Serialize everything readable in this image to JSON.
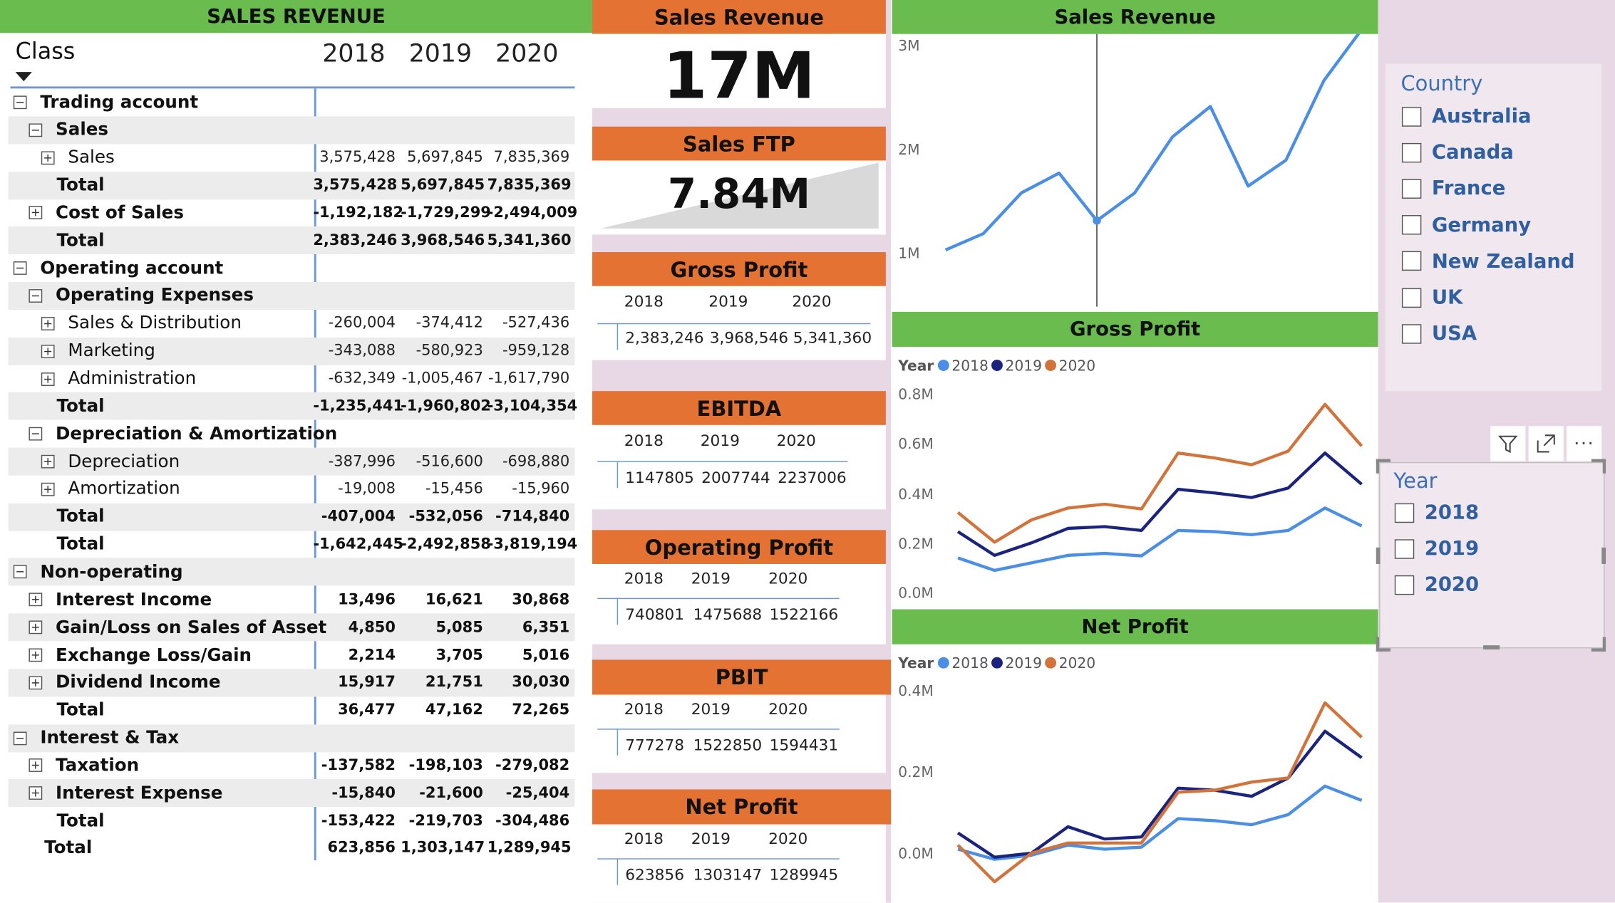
{
  "matrix": {
    "title": "SALES REVENUE",
    "col_header": "Class",
    "years": [
      "2018",
      "2019",
      "2020"
    ],
    "rows": [
      {
        "label": "Trading account",
        "indent": 0,
        "toggle": "minus",
        "bold": true,
        "shade": false,
        "values": [
          "",
          "",
          ""
        ]
      },
      {
        "label": "Sales",
        "indent": 1,
        "toggle": "minus",
        "bold": true,
        "shade": true,
        "values": [
          "",
          "",
          ""
        ]
      },
      {
        "label": "Sales",
        "indent": 2,
        "toggle": "plus",
        "bold": false,
        "shade": false,
        "values": [
          "3,575,428",
          "5,697,845",
          "7,835,369"
        ]
      },
      {
        "label": "Total",
        "indent": 3,
        "toggle": "",
        "bold": true,
        "shade": true,
        "values": [
          "3,575,428",
          "5,697,845",
          "7,835,369"
        ]
      },
      {
        "label": "Cost of Sales",
        "indent": 1,
        "toggle": "plus",
        "bold": true,
        "shade": false,
        "values": [
          "-1,192,182",
          "-1,729,299",
          "-2,494,009"
        ]
      },
      {
        "label": "Total",
        "indent": 3,
        "toggle": "",
        "bold": true,
        "shade": true,
        "values": [
          "2,383,246",
          "3,968,546",
          "5,341,360"
        ]
      },
      {
        "label": "Operating account",
        "indent": 0,
        "toggle": "minus",
        "bold": true,
        "shade": false,
        "values": [
          "",
          "",
          ""
        ]
      },
      {
        "label": "Operating Expenses",
        "indent": 1,
        "toggle": "minus",
        "bold": true,
        "shade": true,
        "values": [
          "",
          "",
          ""
        ]
      },
      {
        "label": "Sales & Distribution",
        "indent": 2,
        "toggle": "plus",
        "bold": false,
        "shade": false,
        "values": [
          "-260,004",
          "-374,412",
          "-527,436"
        ]
      },
      {
        "label": "Marketing",
        "indent": 2,
        "toggle": "plus",
        "bold": false,
        "shade": true,
        "values": [
          "-343,088",
          "-580,923",
          "-959,128"
        ]
      },
      {
        "label": "Administration",
        "indent": 2,
        "toggle": "plus",
        "bold": false,
        "shade": false,
        "values": [
          "-632,349",
          "-1,005,467",
          "-1,617,790"
        ]
      },
      {
        "label": "Total",
        "indent": 3,
        "toggle": "",
        "bold": true,
        "shade": true,
        "values": [
          "-1,235,441",
          "-1,960,802",
          "-3,104,354"
        ]
      },
      {
        "label": "Depreciation & Amortization",
        "indent": 1,
        "toggle": "minus",
        "bold": true,
        "shade": false,
        "values": [
          "",
          "",
          ""
        ]
      },
      {
        "label": "Depreciation",
        "indent": 2,
        "toggle": "plus",
        "bold": false,
        "shade": true,
        "values": [
          "-387,996",
          "-516,600",
          "-698,880"
        ]
      },
      {
        "label": "Amortization",
        "indent": 2,
        "toggle": "plus",
        "bold": false,
        "shade": false,
        "values": [
          "-19,008",
          "-15,456",
          "-15,960"
        ]
      },
      {
        "label": "Total",
        "indent": 3,
        "toggle": "",
        "bold": true,
        "shade": true,
        "values": [
          "-407,004",
          "-532,056",
          "-714,840"
        ]
      },
      {
        "label": "Total",
        "indent": 4,
        "toggle": "",
        "bold": true,
        "shade": false,
        "values": [
          "-1,642,445",
          "-2,492,858",
          "-3,819,194"
        ]
      },
      {
        "label": "Non-operating",
        "indent": 0,
        "toggle": "minus",
        "bold": true,
        "shade": true,
        "values": [
          "",
          "",
          ""
        ]
      },
      {
        "label": "Interest Income",
        "indent": 1,
        "toggle": "plus",
        "bold": true,
        "shade": false,
        "values": [
          "13,496",
          "16,621",
          "30,868"
        ]
      },
      {
        "label": "Gain/Loss on Sales of Asset",
        "indent": 1,
        "toggle": "plus",
        "bold": true,
        "shade": true,
        "values": [
          "4,850",
          "5,085",
          "6,351"
        ]
      },
      {
        "label": "Exchange Loss/Gain",
        "indent": 1,
        "toggle": "plus",
        "bold": true,
        "shade": false,
        "values": [
          "2,214",
          "3,705",
          "5,016"
        ]
      },
      {
        "label": "Dividend Income",
        "indent": 1,
        "toggle": "plus",
        "bold": true,
        "shade": true,
        "values": [
          "15,917",
          "21,751",
          "30,030"
        ]
      },
      {
        "label": "Total",
        "indent": 4,
        "toggle": "",
        "bold": true,
        "shade": false,
        "values": [
          "36,477",
          "47,162",
          "72,265"
        ]
      },
      {
        "label": "Interest & Tax",
        "indent": 0,
        "toggle": "minus",
        "bold": true,
        "shade": true,
        "values": [
          "",
          "",
          ""
        ]
      },
      {
        "label": "Taxation",
        "indent": 1,
        "toggle": "plus",
        "bold": true,
        "shade": false,
        "values": [
          "-137,582",
          "-198,103",
          "-279,082"
        ]
      },
      {
        "label": "Interest Expense",
        "indent": 1,
        "toggle": "plus",
        "bold": true,
        "shade": true,
        "values": [
          "-15,840",
          "-21,600",
          "-25,404"
        ]
      },
      {
        "label": "Total",
        "indent": 4,
        "toggle": "",
        "bold": true,
        "shade": false,
        "values": [
          "-153,422",
          "-219,703",
          "-304,486"
        ]
      },
      {
        "label": "Total",
        "indent": 5,
        "toggle": "",
        "bold": true,
        "shade": false,
        "values": [
          "623,856",
          "1,303,147",
          "1,289,945"
        ]
      }
    ]
  },
  "cards": {
    "sales_revenue": {
      "title": "Sales Revenue",
      "value": "17M"
    },
    "sales_ftp": {
      "title": "Sales FTP",
      "value": "7.84M"
    },
    "gross_profit": {
      "title": "Gross Profit",
      "years": [
        "2018",
        "2019",
        "2020"
      ],
      "values": [
        "2,383,246",
        "3,968,546",
        "5,341,360"
      ]
    },
    "ebitda": {
      "title": "EBITDA",
      "years": [
        "2018",
        "2019",
        "2020"
      ],
      "values": [
        "1147805",
        "2007744",
        "2237006"
      ]
    },
    "operating_profit": {
      "title": "Operating Profit",
      "years": [
        "2018",
        "2019",
        "2020"
      ],
      "values": [
        "740801",
        "1475688",
        "1522166"
      ]
    },
    "pbit": {
      "title": "PBIT",
      "years": [
        "2018",
        "2019",
        "2020"
      ],
      "values": [
        "777278",
        "1522850",
        "1594431"
      ]
    },
    "net_profit": {
      "title": "Net Profit",
      "years": [
        "2018",
        "2019",
        "2020"
      ],
      "values": [
        "623856",
        "1303147",
        "1289945"
      ]
    }
  },
  "chart_data": [
    {
      "type": "line",
      "title": "Sales Revenue",
      "yticks": [
        "3M",
        "2M",
        "1M"
      ],
      "ylim": [
        0,
        3000000
      ],
      "x": [
        1,
        2,
        3,
        4,
        5,
        6,
        7,
        8,
        9,
        10,
        11,
        12
      ],
      "series": [
        {
          "name": "",
          "color": "#4a8ee6",
          "values": [
            620000,
            810000,
            1280000,
            1510000,
            960000,
            1280000,
            1930000,
            2280000,
            1360000,
            1660000,
            2580000,
            3170000
          ]
        }
      ],
      "highlight_index": 4,
      "grid": false
    },
    {
      "type": "line",
      "title": "Gross Profit",
      "legend_title": "Year",
      "legend_position": "top-left",
      "yticks": [
        "0.8M",
        "0.6M",
        "0.4M",
        "0.2M",
        "0.0M"
      ],
      "ylim": [
        0,
        0.8
      ],
      "x": [
        1,
        2,
        3,
        4,
        5,
        6,
        7,
        8,
        9,
        10,
        11,
        12
      ],
      "series": [
        {
          "name": "2018",
          "color": "#4a8ee6",
          "values": [
            0.14,
            0.09,
            0.12,
            0.15,
            0.158,
            0.148,
            0.25,
            0.245,
            0.233,
            0.25,
            0.34,
            0.268
          ]
        },
        {
          "name": "2019",
          "color": "#1a237e",
          "values": [
            0.245,
            0.15,
            0.2,
            0.258,
            0.265,
            0.25,
            0.415,
            0.4,
            0.382,
            0.42,
            0.56,
            0.435
          ]
        },
        {
          "name": "2020",
          "color": "#d2733b",
          "values": [
            0.322,
            0.203,
            0.292,
            0.34,
            0.355,
            0.336,
            0.56,
            0.54,
            0.513,
            0.568,
            0.755,
            0.588
          ]
        }
      ]
    },
    {
      "type": "line",
      "title": "Net Profit",
      "legend_title": "Year",
      "legend_position": "top-left",
      "yticks": [
        "0.4M",
        "0.2M",
        "0.0M"
      ],
      "ylim": [
        0,
        0.4
      ],
      "x": [
        1,
        2,
        3,
        4,
        5,
        6,
        7,
        8,
        9,
        10,
        11,
        12
      ],
      "series": [
        {
          "name": "2018",
          "color": "#4a8ee6",
          "values": [
            0.01,
            -0.015,
            -0.005,
            0.02,
            0.01,
            0.015,
            0.085,
            0.08,
            0.07,
            0.095,
            0.165,
            0.13
          ]
        },
        {
          "name": "2019",
          "color": "#1a237e",
          "values": [
            0.05,
            -0.01,
            0.0,
            0.065,
            0.035,
            0.04,
            0.16,
            0.155,
            0.14,
            0.185,
            0.3,
            0.235
          ]
        },
        {
          "name": "2020",
          "color": "#d2733b",
          "values": [
            0.02,
            -0.07,
            0.0,
            0.025,
            0.025,
            0.025,
            0.15,
            0.155,
            0.175,
            0.185,
            0.37,
            0.285
          ]
        }
      ]
    }
  ],
  "slicers": {
    "country": {
      "title": "Country",
      "items": [
        "Australia",
        "Canada",
        "France",
        "Germany",
        "New Zealand",
        "UK",
        "USA"
      ]
    },
    "year": {
      "title": "Year",
      "items": [
        "2018",
        "2019",
        "2020"
      ]
    }
  },
  "colors": {
    "green_header": "#6abc4f",
    "orange_header": "#e47233",
    "panel_pink": "#e8d7e5",
    "slicer_text": "#2f5f9e"
  }
}
